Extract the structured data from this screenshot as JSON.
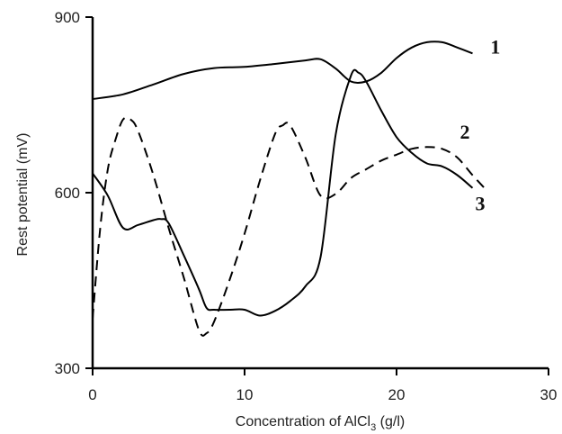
{
  "chart_data": {
    "type": "line",
    "xlabel": "Concentration of AlCl",
    "xlabel_subscript": "3",
    "xlabel_suffix": " (g/l)",
    "ylabel": "Rest potential (mV)",
    "xlim": [
      0,
      30
    ],
    "ylim": [
      300,
      900
    ],
    "x_ticks": [
      0,
      10,
      20,
      30
    ],
    "y_ticks": [
      300,
      600,
      900
    ],
    "grid": false,
    "legend": "none",
    "series": [
      {
        "name": "1",
        "style": "solid",
        "points": [
          [
            0,
            760
          ],
          [
            2,
            768
          ],
          [
            4,
            785
          ],
          [
            6,
            803
          ],
          [
            8,
            813
          ],
          [
            10,
            815
          ],
          [
            12,
            820
          ],
          [
            14,
            826
          ],
          [
            15,
            828
          ],
          [
            16,
            812
          ],
          [
            17,
            790
          ],
          [
            18,
            790
          ],
          [
            19,
            805
          ],
          [
            20,
            830
          ],
          [
            21,
            848
          ],
          [
            22,
            857
          ],
          [
            23,
            857
          ],
          [
            24,
            848
          ],
          [
            25,
            838
          ]
        ]
      },
      {
        "name": "2",
        "style": "dashed",
        "points": [
          [
            0,
            385
          ],
          [
            0.5,
            540
          ],
          [
            1,
            640
          ],
          [
            1.5,
            690
          ],
          [
            2,
            725
          ],
          [
            2.5,
            725
          ],
          [
            3,
            705
          ],
          [
            4,
            630
          ],
          [
            5,
            540
          ],
          [
            6,
            455
          ],
          [
            7,
            365
          ],
          [
            7.5,
            360
          ],
          [
            8,
            380
          ],
          [
            9,
            450
          ],
          [
            10,
            530
          ],
          [
            11,
            620
          ],
          [
            12,
            700
          ],
          [
            12.5,
            715
          ],
          [
            13,
            715
          ],
          [
            14,
            660
          ],
          [
            15,
            595
          ],
          [
            16,
            598
          ],
          [
            17,
            625
          ],
          [
            18,
            640
          ],
          [
            19,
            655
          ],
          [
            20,
            665
          ],
          [
            21,
            675
          ],
          [
            22,
            678
          ],
          [
            23,
            675
          ],
          [
            24,
            660
          ],
          [
            25,
            630
          ],
          [
            26,
            602
          ]
        ]
      },
      {
        "name": "3",
        "style": "solid",
        "points": [
          [
            0,
            633
          ],
          [
            1,
            595
          ],
          [
            2,
            540
          ],
          [
            3,
            545
          ],
          [
            4,
            553
          ],
          [
            4.5,
            555
          ],
          [
            5,
            548
          ],
          [
            6,
            493
          ],
          [
            7,
            435
          ],
          [
            7.5,
            403
          ],
          [
            8,
            400
          ],
          [
            9,
            400
          ],
          [
            10,
            400
          ],
          [
            11,
            390
          ],
          [
            12,
            398
          ],
          [
            13,
            415
          ],
          [
            14,
            440
          ],
          [
            15,
            490
          ],
          [
            16,
            700
          ],
          [
            17,
            800
          ],
          [
            17.5,
            805
          ],
          [
            18,
            790
          ],
          [
            19,
            740
          ],
          [
            20,
            695
          ],
          [
            21,
            668
          ],
          [
            22,
            650
          ],
          [
            23,
            645
          ],
          [
            24,
            630
          ],
          [
            25,
            608
          ]
        ]
      }
    ],
    "annotations": [
      {
        "text": "1",
        "x": 26.5,
        "y": 850
      },
      {
        "text": "2",
        "x": 24.5,
        "y": 705
      },
      {
        "text": "3",
        "x": 25.5,
        "y": 582
      }
    ]
  }
}
